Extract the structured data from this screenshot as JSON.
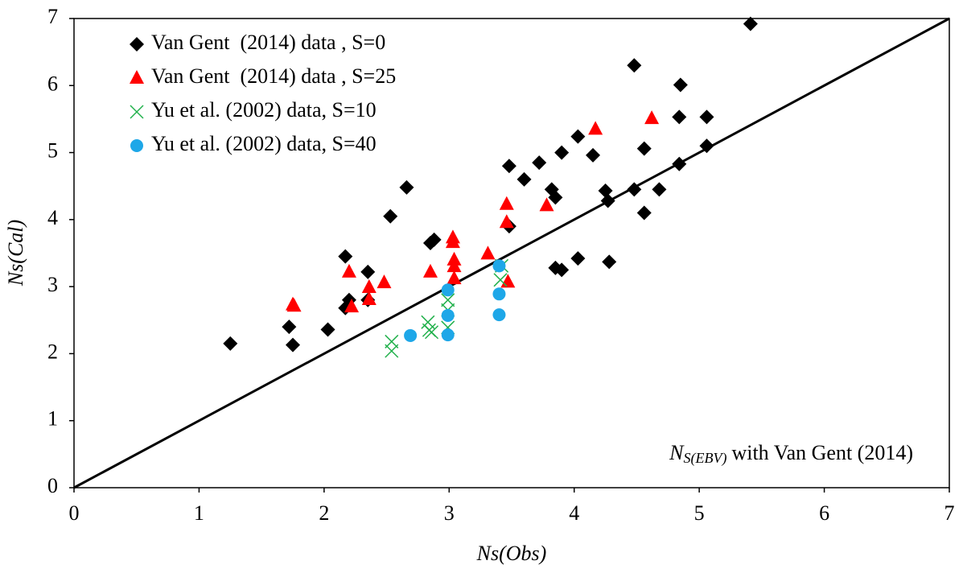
{
  "chart_data": {
    "type": "scatter",
    "x_label": "Ns(Obs)",
    "y_label": "Ns(Cal)",
    "annotation_parts": [
      "N",
      "S(EBV)",
      "with Van Gent (2014)"
    ],
    "xlim": [
      0,
      7
    ],
    "ylim": [
      0,
      7
    ],
    "xticks": [
      0,
      1,
      2,
      3,
      4,
      5,
      6,
      7
    ],
    "yticks": [
      0,
      1,
      2,
      3,
      4,
      5,
      6,
      7
    ],
    "grid": false,
    "identity_line": true,
    "legend": "upper-left",
    "series": [
      {
        "name": "Van Gent  (2014) data , S=0",
        "color": "#000000",
        "marker": "diamond",
        "x": [
          1.25,
          1.72,
          1.75,
          2.03,
          2.17,
          2.17,
          2.2,
          2.35,
          2.35,
          2.53,
          2.66,
          2.85,
          2.88,
          3.48,
          3.48,
          3.6,
          3.72,
          3.82,
          3.85,
          3.85,
          3.9,
          3.9,
          4.03,
          4.03,
          4.15,
          4.25,
          4.27,
          4.28,
          4.48,
          4.48,
          4.56,
          4.56,
          4.68,
          4.84,
          4.85,
          4.84,
          5.06,
          5.06,
          5.41
        ],
        "values": [
          2.15,
          2.4,
          2.13,
          2.36,
          3.45,
          2.68,
          2.8,
          3.22,
          2.8,
          4.05,
          4.48,
          3.65,
          3.7,
          4.8,
          3.9,
          4.6,
          4.85,
          4.45,
          4.33,
          3.28,
          3.25,
          5.0,
          5.24,
          3.42,
          4.96,
          4.43,
          4.28,
          3.37,
          6.3,
          4.45,
          5.06,
          4.1,
          4.45,
          5.53,
          6.01,
          4.83,
          5.53,
          5.1,
          6.92
        ]
      },
      {
        "name": "Van Gent  (2014) data , S=25",
        "color": "#ff0000",
        "marker": "triangle",
        "x": [
          1.76,
          1.75,
          2.2,
          2.22,
          2.36,
          2.36,
          2.48,
          2.85,
          3.03,
          3.03,
          3.04,
          3.04,
          3.04,
          3.31,
          3.46,
          3.46,
          3.47,
          3.78,
          4.17,
          4.62
        ],
        "values": [
          2.71,
          2.73,
          3.22,
          2.7,
          2.99,
          2.81,
          3.06,
          3.22,
          3.73,
          3.66,
          3.4,
          3.3,
          3.12,
          3.49,
          4.23,
          3.96,
          3.07,
          4.21,
          5.35,
          5.51
        ]
      },
      {
        "name": "Yu et al. (2002) data, S=10",
        "color": "#22b14c",
        "marker": "x",
        "x": [
          2.54,
          2.54,
          2.83,
          2.84,
          2.86,
          2.99,
          2.99,
          2.99,
          3.41,
          3.42
        ],
        "values": [
          2.18,
          2.04,
          2.47,
          2.35,
          2.32,
          2.8,
          2.65,
          2.39,
          3.1,
          3.31
        ]
      },
      {
        "name": "Yu et al. (2002) data, S=40",
        "color": "#1ea7e8",
        "marker": "circle",
        "x": [
          2.69,
          2.99,
          2.99,
          2.99,
          3.4,
          3.4,
          3.4
        ],
        "values": [
          2.27,
          2.95,
          2.57,
          2.28,
          3.31,
          2.89,
          2.58
        ]
      }
    ]
  }
}
